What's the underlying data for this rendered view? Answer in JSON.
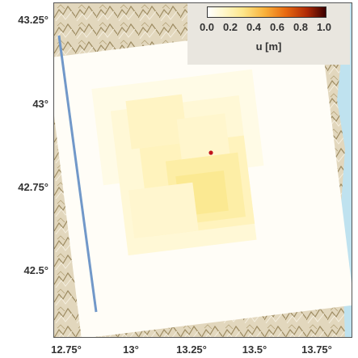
{
  "map": {
    "lat_ticks": [
      "43.25°",
      "43°",
      "42.75°",
      "42.5°"
    ],
    "lon_ticks": [
      "12.75°",
      "13°",
      "13.25°",
      "13.5°",
      "13.75°"
    ],
    "colors": {
      "background_relief": "#cdbf9c",
      "coast_water": "#bfe2ef",
      "track_line": "#7198c9",
      "epicenter": "#c0141b"
    },
    "epicenter_marker": "red-dot"
  },
  "legend": {
    "ticks": [
      "0.0",
      "0.2",
      "0.4",
      "0.6",
      "0.8",
      "1.0"
    ],
    "title": "u [m]",
    "range": [
      0.0,
      1.0
    ]
  }
}
